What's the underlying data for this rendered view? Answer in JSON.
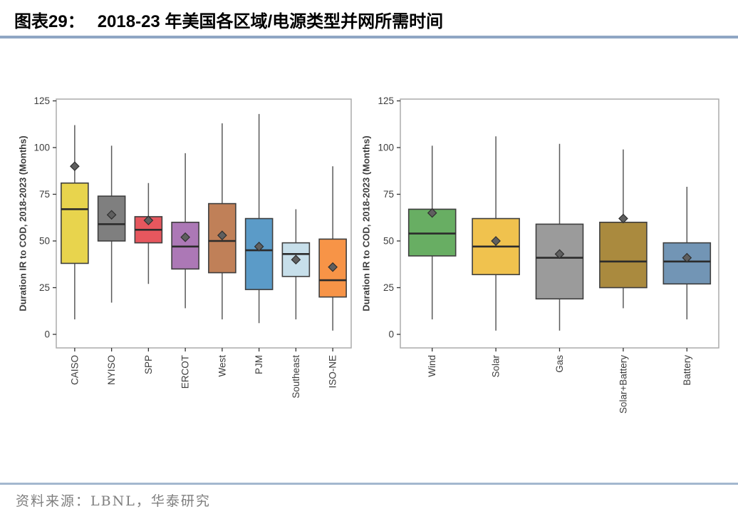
{
  "page": {
    "figure_label": "图表29：",
    "figure_title": "2018-23 年美国各区域/电源类型并网所需时间",
    "source": "资料来源：LBNL，华泰研究"
  },
  "style_colors": {
    "title_rule": "#8FA6C4",
    "footer_rule": "#A3B8CF",
    "panel_border": "#ABABAB",
    "axis_text": "#3D3D3D",
    "tick": "#333333",
    "whisker": "#5A5A5A",
    "box_border": "#3F3F3F",
    "median": "#2B2B2B",
    "mean_fill": "#5F5F5F",
    "mean_stroke": "#2F2F2F",
    "source_text": "#7F7F7F"
  },
  "chart_data": [
    {
      "type": "boxplot",
      "title": "",
      "xlabel": "",
      "ylabel": "Duration IR to COD, 2018-2023 (Months)",
      "ylim": [
        0,
        125
      ],
      "yticks": [
        0,
        25,
        50,
        75,
        100,
        125
      ],
      "grid": false,
      "legend": "none",
      "categories": [
        "CAISO",
        "NYISO",
        "SPP",
        "ERCOT",
        "West",
        "PJM",
        "Southeast",
        "ISO-NE"
      ],
      "series": [
        {
          "name": "CAISO",
          "whisker_low": 8,
          "q1": 38,
          "median": 67,
          "q3": 81,
          "whisker_high": 112,
          "mean": 90,
          "color": "#E8D44D"
        },
        {
          "name": "NYISO",
          "whisker_low": 17,
          "q1": 50,
          "median": 59,
          "q3": 74,
          "whisker_high": 101,
          "mean": 64,
          "color": "#7F7F7F"
        },
        {
          "name": "SPP",
          "whisker_low": 27,
          "q1": 49,
          "median": 56,
          "q3": 63,
          "whisker_high": 81,
          "mean": 61,
          "color": "#E6575E"
        },
        {
          "name": "ERCOT",
          "whisker_low": 14,
          "q1": 35,
          "median": 47,
          "q3": 60,
          "whisker_high": 97,
          "mean": 52,
          "color": "#AC78B6"
        },
        {
          "name": "West",
          "whisker_low": 8,
          "q1": 33,
          "median": 50,
          "q3": 70,
          "whisker_high": 113,
          "mean": 53,
          "color": "#C08058"
        },
        {
          "name": "PJM",
          "whisker_low": 6,
          "q1": 24,
          "median": 45,
          "q3": 62,
          "whisker_high": 118,
          "mean": 47,
          "color": "#5B9BC8"
        },
        {
          "name": "Southeast",
          "whisker_low": 8,
          "q1": 31,
          "median": 43,
          "q3": 49,
          "whisker_high": 67,
          "mean": 40,
          "color": "#C7DFEA"
        },
        {
          "name": "ISO-NE",
          "whisker_low": 2,
          "q1": 20,
          "median": 29,
          "q3": 51,
          "whisker_high": 90,
          "mean": 36,
          "color": "#F79447"
        }
      ]
    },
    {
      "type": "boxplot",
      "title": "",
      "xlabel": "",
      "ylabel": "Duration IR to COD, 2018-2023 (Months)",
      "ylim": [
        0,
        125
      ],
      "yticks": [
        0,
        25,
        50,
        75,
        100,
        125
      ],
      "grid": false,
      "legend": "none",
      "categories": [
        "Wind",
        "Solar",
        "Gas",
        "Solar+Battery",
        "Battery"
      ],
      "series": [
        {
          "name": "Wind",
          "whisker_low": 8,
          "q1": 42,
          "median": 54,
          "q3": 67,
          "whisker_high": 101,
          "mean": 65,
          "color": "#68AE63"
        },
        {
          "name": "Solar",
          "whisker_low": 2,
          "q1": 32,
          "median": 47,
          "q3": 62,
          "whisker_high": 106,
          "mean": 50,
          "color": "#F0C24E"
        },
        {
          "name": "Gas",
          "whisker_low": 2,
          "q1": 19,
          "median": 41,
          "q3": 59,
          "whisker_high": 102,
          "mean": 43,
          "color": "#9B9B9B"
        },
        {
          "name": "Solar+Battery",
          "whisker_low": 14,
          "q1": 25,
          "median": 39,
          "q3": 60,
          "whisker_high": 99,
          "mean": 62,
          "color": "#AA8A3E"
        },
        {
          "name": "Battery",
          "whisker_low": 8,
          "q1": 27,
          "median": 39,
          "q3": 49,
          "whisker_high": 79,
          "mean": 41,
          "color": "#7295B5"
        }
      ]
    }
  ]
}
